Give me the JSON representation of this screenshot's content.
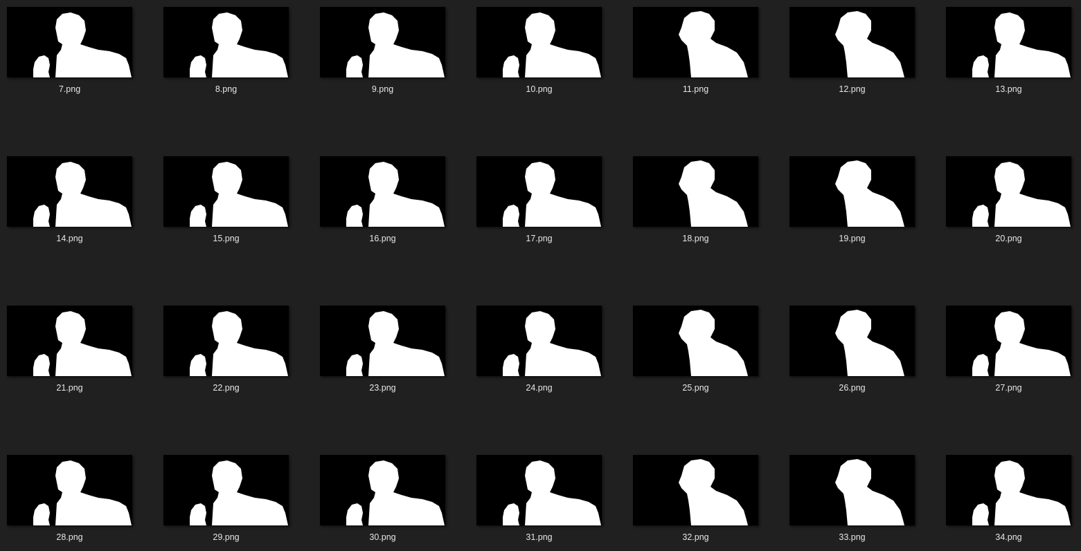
{
  "view": {
    "background": "#202020",
    "thumbnail_background": "#000000",
    "silhouette_color": "#ffffff",
    "label_color": "#e6e6e6"
  },
  "files": [
    {
      "name": "7.png",
      "variant": "wide"
    },
    {
      "name": "8.png",
      "variant": "wide"
    },
    {
      "name": "9.png",
      "variant": "wide"
    },
    {
      "name": "10.png",
      "variant": "wide"
    },
    {
      "name": "11.png",
      "variant": "narrow"
    },
    {
      "name": "12.png",
      "variant": "narrow"
    },
    {
      "name": "13.png",
      "variant": "wide"
    },
    {
      "name": "14.png",
      "variant": "wide"
    },
    {
      "name": "15.png",
      "variant": "wide"
    },
    {
      "name": "16.png",
      "variant": "wide"
    },
    {
      "name": "17.png",
      "variant": "wide"
    },
    {
      "name": "18.png",
      "variant": "narrow"
    },
    {
      "name": "19.png",
      "variant": "narrow"
    },
    {
      "name": "20.png",
      "variant": "wide"
    },
    {
      "name": "21.png",
      "variant": "wide"
    },
    {
      "name": "22.png",
      "variant": "wide"
    },
    {
      "name": "23.png",
      "variant": "wide"
    },
    {
      "name": "24.png",
      "variant": "wide"
    },
    {
      "name": "25.png",
      "variant": "narrow"
    },
    {
      "name": "26.png",
      "variant": "narrow"
    },
    {
      "name": "27.png",
      "variant": "wide"
    },
    {
      "name": "28.png",
      "variant": "wide"
    },
    {
      "name": "29.png",
      "variant": "wide"
    },
    {
      "name": "30.png",
      "variant": "wide"
    },
    {
      "name": "31.png",
      "variant": "wide"
    },
    {
      "name": "32.png",
      "variant": "narrow"
    },
    {
      "name": "33.png",
      "variant": "narrow"
    },
    {
      "name": "34.png",
      "variant": "wide"
    }
  ]
}
